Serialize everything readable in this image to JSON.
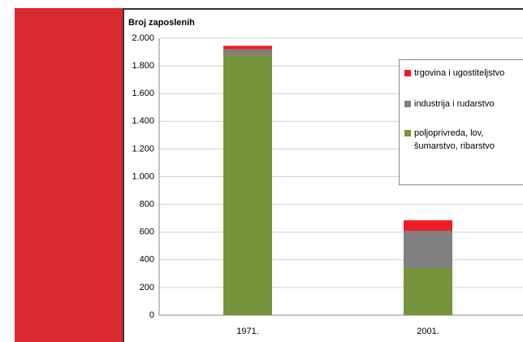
{
  "chart_data": {
    "type": "stacked-bar",
    "title": "Broj zaposlenih",
    "categories": [
      "1971.",
      "2001."
    ],
    "series": [
      {
        "name": "poljoprivreda, lov, šumarstvo, ribarstvo",
        "color": "#77933c",
        "values": [
          1880,
          340
        ]
      },
      {
        "name": "industrija i rudarstvo",
        "color": "#808080",
        "values": [
          40,
          270
        ]
      },
      {
        "name": "trgovina i ugostiteljstvo",
        "color": "#ee1c24",
        "values": [
          25,
          75
        ]
      }
    ],
    "ylim": [
      0,
      2000
    ],
    "yticks": [
      0,
      200,
      400,
      600,
      800,
      {
        "value": 1000,
        "label": "1.000"
      },
      {
        "value": 1200,
        "label": "1.200"
      },
      {
        "value": 1400,
        "label": "1.400"
      },
      {
        "value": 1600,
        "label": "1.600"
      },
      {
        "value": 1800,
        "label": "1.800"
      },
      {
        "value": 2000,
        "label": "2.000"
      }
    ],
    "grid": true
  }
}
